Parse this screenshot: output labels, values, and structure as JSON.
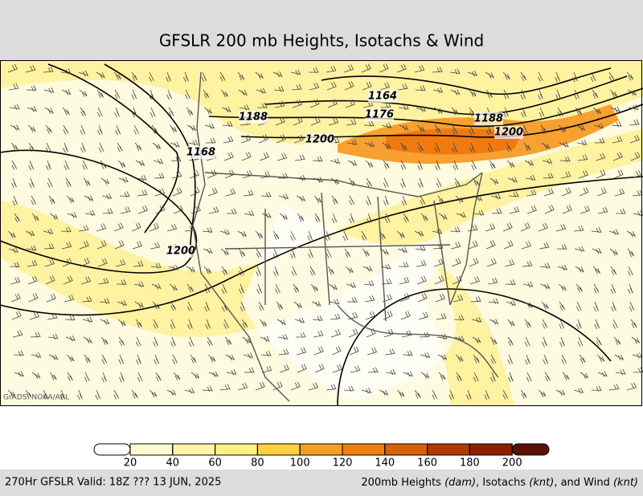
{
  "title": "GFSLR 200 mb Heights, Isotachs & Wind",
  "credit": "GrADS: NOAA/ARL",
  "contour_labels": [
    "1164",
    "1176",
    "1188",
    "1200",
    "1188",
    "1200",
    "1168",
    "1200"
  ],
  "colorbar": {
    "ticks": [
      20,
      40,
      60,
      80,
      100,
      120,
      140,
      160,
      180,
      200
    ],
    "colors": [
      "#ffffff",
      "#fffad0",
      "#fff5a8",
      "#fff080",
      "#ffd040",
      "#f5a020",
      "#ee8010",
      "#d86008",
      "#b03a04",
      "#8a2000",
      "#5a1200"
    ]
  },
  "footer_left": "270Hr GFSLR Valid: 18Z ??? 13 JUN, 2025",
  "footer_right": [
    "200mb Heights ",
    "(dam)",
    ", Isotachs ",
    "(knt)",
    ", and Wind ",
    "(knt)"
  ]
}
